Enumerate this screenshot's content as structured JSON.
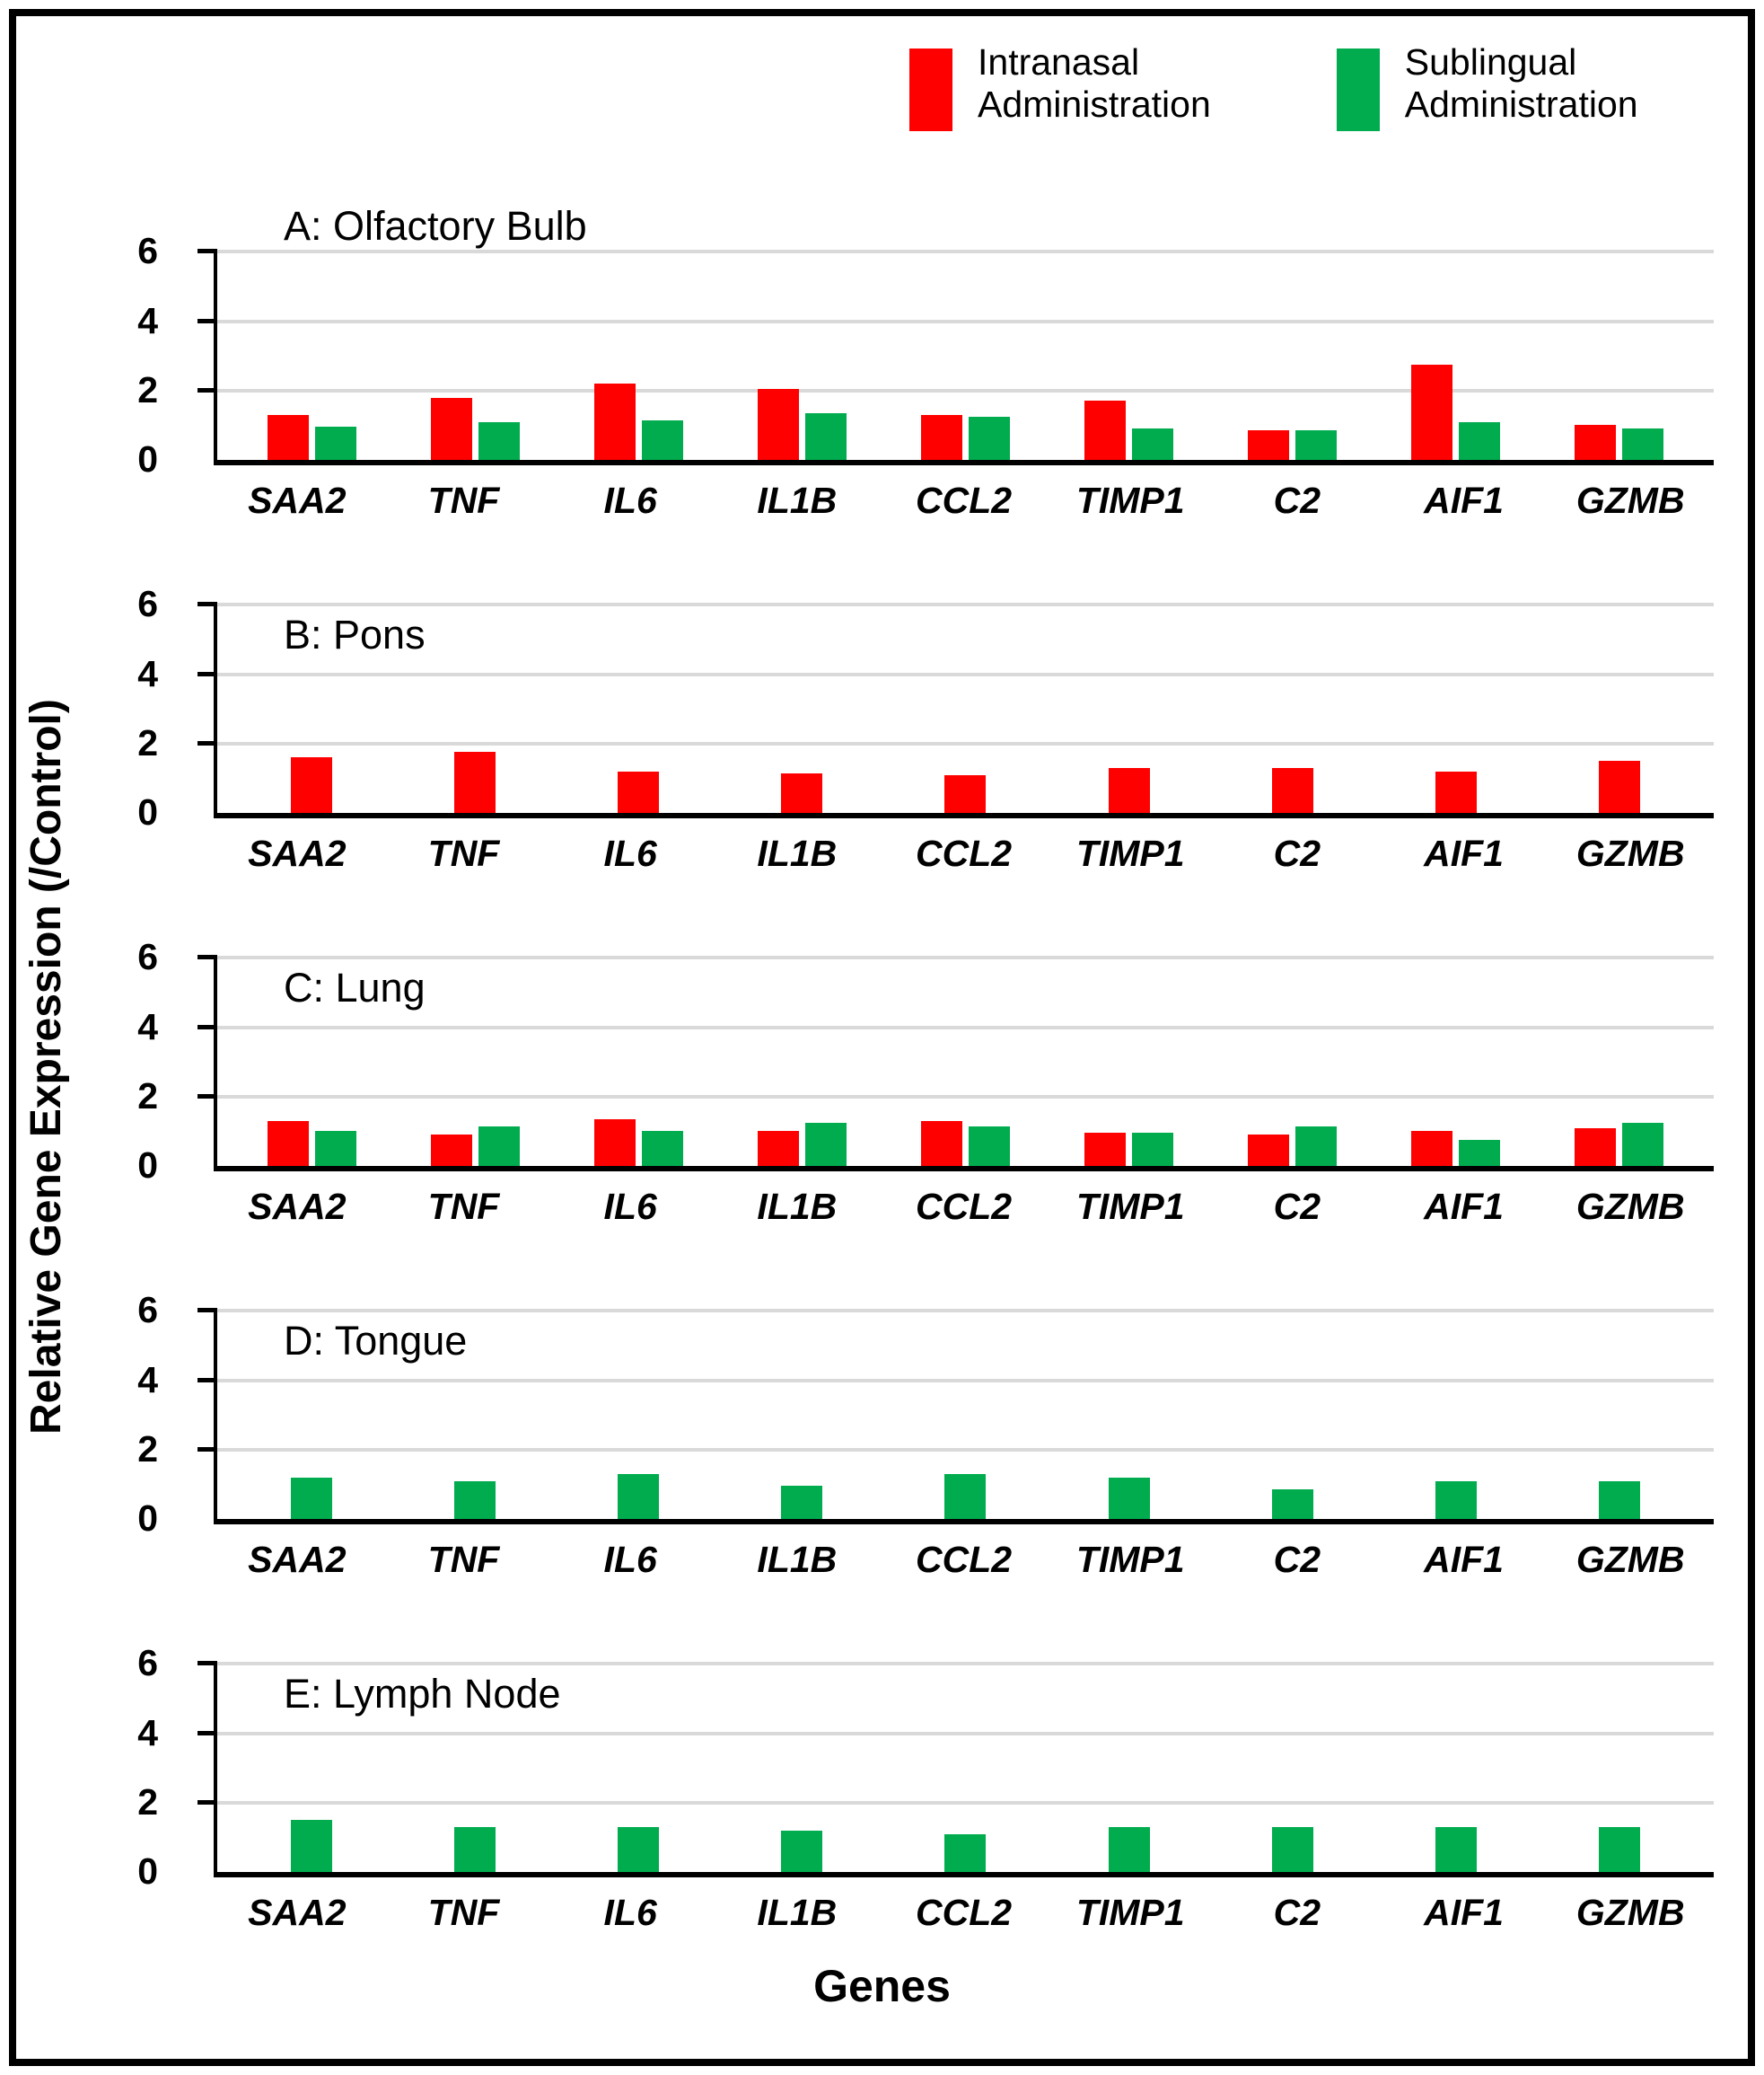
{
  "figure": {
    "ylabel": "Relative Gene Expression (/Control)",
    "xlabel": "Genes"
  },
  "legend": {
    "items": [
      {
        "name": "Intranasal Administration",
        "line1": "Intranasal",
        "line2": "Administration",
        "color": "#FF0000"
      },
      {
        "name": "Sublingual Administration",
        "line1": "Sublingual",
        "line2": "Administration",
        "color": "#00AC4E"
      }
    ]
  },
  "colors": {
    "intranasal": "#FF0000",
    "sublingual": "#00AC4E",
    "gridline": "#D9D9D9",
    "axis": "#000000"
  },
  "chart_data": [
    {
      "type": "bar",
      "panel": "A",
      "title": "A: Olfactory Bulb",
      "categories": [
        "SAA2",
        "TNF",
        "IL6",
        "IL1B",
        "CCL2",
        "TIMP1",
        "C2",
        "AIF1",
        "GZMB"
      ],
      "series": [
        {
          "name": "Intranasal Administration",
          "color": "#FF0000",
          "values": [
            1.3,
            1.8,
            2.2,
            2.05,
            1.3,
            1.7,
            0.85,
            2.75,
            1.0
          ]
        },
        {
          "name": "Sublingual Administration",
          "color": "#00AC4E",
          "values": [
            0.95,
            1.1,
            1.15,
            1.35,
            1.25,
            0.9,
            0.85,
            1.1,
            0.9
          ]
        }
      ],
      "ylim": [
        0,
        6
      ],
      "yticks": [
        0,
        2,
        4,
        6
      ],
      "grid": true,
      "legend_position": "top"
    },
    {
      "type": "bar",
      "panel": "B",
      "title": "B: Pons",
      "categories": [
        "SAA2",
        "TNF",
        "IL6",
        "IL1B",
        "CCL2",
        "TIMP1",
        "C2",
        "AIF1",
        "GZMB"
      ],
      "series": [
        {
          "name": "Intranasal Administration",
          "color": "#FF0000",
          "values": [
            1.6,
            1.75,
            1.2,
            1.15,
            1.1,
            1.3,
            1.3,
            1.2,
            1.5
          ]
        }
      ],
      "ylim": [
        0,
        6
      ],
      "yticks": [
        0,
        2,
        4,
        6
      ],
      "grid": true
    },
    {
      "type": "bar",
      "panel": "C",
      "title": "C: Lung",
      "categories": [
        "SAA2",
        "TNF",
        "IL6",
        "IL1B",
        "CCL2",
        "TIMP1",
        "C2",
        "AIF1",
        "GZMB"
      ],
      "series": [
        {
          "name": "Intranasal Administration",
          "color": "#FF0000",
          "values": [
            1.3,
            0.9,
            1.35,
            1.0,
            1.3,
            0.95,
            0.9,
            1.0,
            1.1
          ]
        },
        {
          "name": "Sublingual Administration",
          "color": "#00AC4E",
          "values": [
            1.0,
            1.15,
            1.0,
            1.25,
            1.15,
            0.95,
            1.15,
            0.75,
            1.25
          ]
        }
      ],
      "ylim": [
        0,
        6
      ],
      "yticks": [
        0,
        2,
        4,
        6
      ],
      "grid": true
    },
    {
      "type": "bar",
      "panel": "D",
      "title": "D: Tongue",
      "categories": [
        "SAA2",
        "TNF",
        "IL6",
        "IL1B",
        "CCL2",
        "TIMP1",
        "C2",
        "AIF1",
        "GZMB"
      ],
      "series": [
        {
          "name": "Sublingual Administration",
          "color": "#00AC4E",
          "values": [
            1.2,
            1.1,
            1.3,
            0.95,
            1.3,
            1.2,
            0.85,
            1.1,
            1.1
          ]
        }
      ],
      "ylim": [
        0,
        6
      ],
      "yticks": [
        0,
        2,
        4,
        6
      ],
      "grid": true
    },
    {
      "type": "bar",
      "panel": "E",
      "title": "E: Lymph Node",
      "categories": [
        "SAA2",
        "TNF",
        "IL6",
        "IL1B",
        "CCL2",
        "TIMP1",
        "C2",
        "AIF1",
        "GZMB"
      ],
      "series": [
        {
          "name": "Sublingual Administration",
          "color": "#00AC4E",
          "values": [
            1.5,
            1.3,
            1.3,
            1.2,
            1.1,
            1.3,
            1.3,
            1.3,
            1.3
          ]
        }
      ],
      "ylim": [
        0,
        6
      ],
      "yticks": [
        0,
        2,
        4,
        6
      ],
      "grid": true
    }
  ]
}
